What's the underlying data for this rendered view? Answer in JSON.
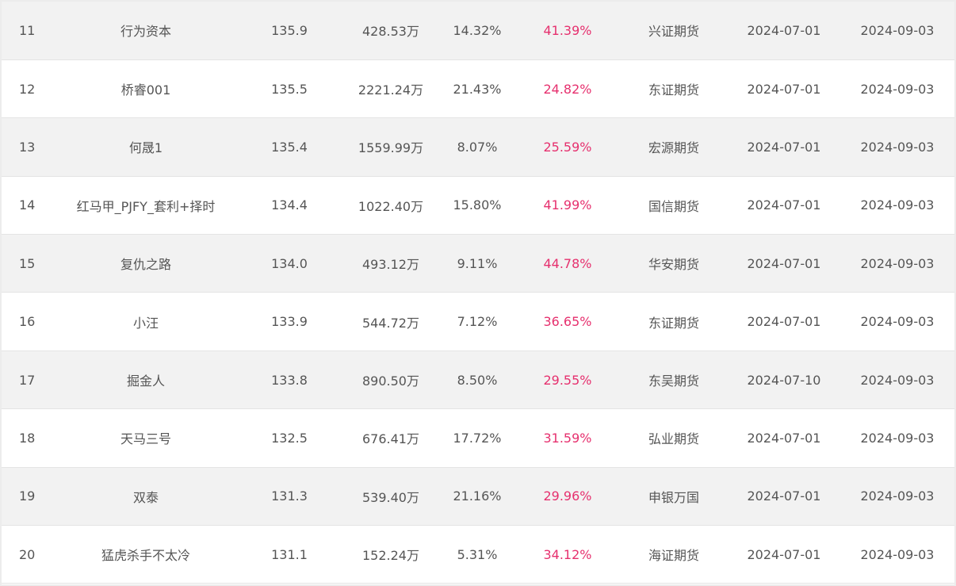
{
  "rows": [
    {
      "rank": "11",
      "name": "行为资本",
      "score": "135.9",
      "equity": "428.53万",
      "drawdown": "14.32%",
      "return": "41.39%",
      "broker": "兴证期货",
      "start": "2024-07-01",
      "end": "2024-09-03"
    },
    {
      "rank": "12",
      "name": "桥睿001",
      "score": "135.5",
      "equity": "2221.24万",
      "drawdown": "21.43%",
      "return": "24.82%",
      "broker": "东证期货",
      "start": "2024-07-01",
      "end": "2024-09-03"
    },
    {
      "rank": "13",
      "name": "何晟1",
      "score": "135.4",
      "equity": "1559.99万",
      "drawdown": "8.07%",
      "return": "25.59%",
      "broker": "宏源期货",
      "start": "2024-07-01",
      "end": "2024-09-03"
    },
    {
      "rank": "14",
      "name": "红马甲_PJFY_套利+择时",
      "score": "134.4",
      "equity": "1022.40万",
      "drawdown": "15.80%",
      "return": "41.99%",
      "broker": "国信期货",
      "start": "2024-07-01",
      "end": "2024-09-03"
    },
    {
      "rank": "15",
      "name": "复仇之路",
      "score": "134.0",
      "equity": "493.12万",
      "drawdown": "9.11%",
      "return": "44.78%",
      "broker": "华安期货",
      "start": "2024-07-01",
      "end": "2024-09-03"
    },
    {
      "rank": "16",
      "name": "小汪",
      "score": "133.9",
      "equity": "544.72万",
      "drawdown": "7.12%",
      "return": "36.65%",
      "broker": "东证期货",
      "start": "2024-07-01",
      "end": "2024-09-03"
    },
    {
      "rank": "17",
      "name": "掘金人",
      "score": "133.8",
      "equity": "890.50万",
      "drawdown": "8.50%",
      "return": "29.55%",
      "broker": "东吴期货",
      "start": "2024-07-10",
      "end": "2024-09-03"
    },
    {
      "rank": "18",
      "name": "天马三号",
      "score": "132.5",
      "equity": "676.41万",
      "drawdown": "17.72%",
      "return": "31.59%",
      "broker": "弘业期货",
      "start": "2024-07-01",
      "end": "2024-09-03"
    },
    {
      "rank": "19",
      "name": "双泰",
      "score": "131.3",
      "equity": "539.40万",
      "drawdown": "21.16%",
      "return": "29.96%",
      "broker": "申银万国",
      "start": "2024-07-01",
      "end": "2024-09-03"
    },
    {
      "rank": "20",
      "name": "猛虎杀手不太冷",
      "score": "131.1",
      "equity": "152.24万",
      "drawdown": "5.31%",
      "return": "34.12%",
      "broker": "海证期货",
      "start": "2024-07-01",
      "end": "2024-09-03"
    }
  ],
  "colors": {
    "return_text": "#e6306e",
    "text": "#555555",
    "row_alt": "#f2f2f2"
  }
}
